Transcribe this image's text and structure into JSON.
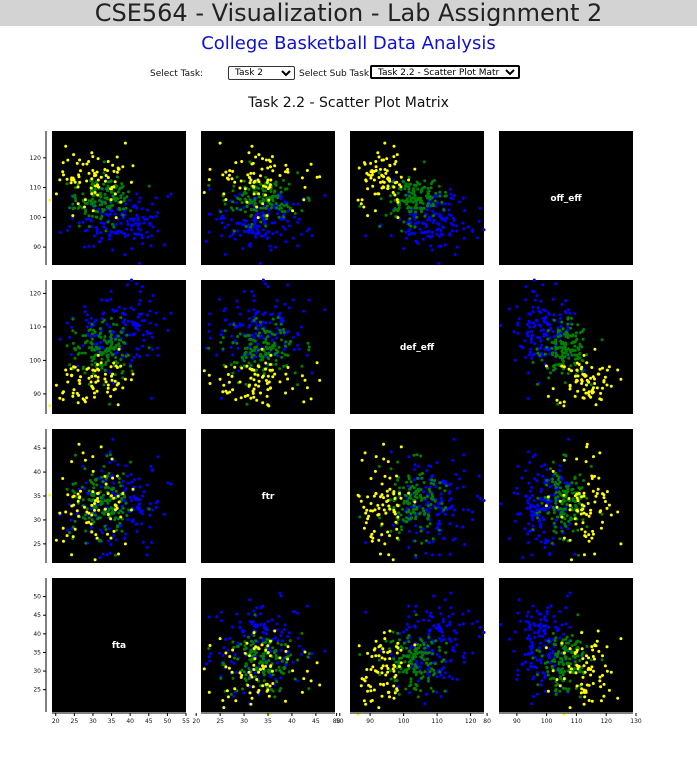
{
  "page": {
    "title": "CSE564 - Visualization - Lab Assignment 2",
    "subtitle": "College Basketball Data Analysis"
  },
  "controls": {
    "task_label": "Select Task:",
    "task_value": "Task 2",
    "subtask_label": "Select Sub Task:",
    "subtask_value": "Task 2.2 - Scatter Plot Matrix"
  },
  "colors": {
    "background": "#000000",
    "clusters": [
      "#0000ff",
      "#008000",
      "#ffff00"
    ]
  },
  "chart_data": {
    "type": "scatter",
    "title": "Task 2.2 - Scatter Plot Matrix",
    "variables": [
      {
        "name": "off_eff",
        "ticks": [
          90,
          100,
          110,
          120
        ],
        "range": [
          84,
          129
        ]
      },
      {
        "name": "def_eff",
        "ticks": [
          90,
          100,
          110,
          120
        ],
        "range": [
          84,
          124
        ]
      },
      {
        "name": "ftr",
        "ticks": [
          25,
          30,
          35,
          40,
          45
        ],
        "range": [
          21,
          49
        ]
      },
      {
        "name": "fta",
        "ticks": [
          20,
          25,
          30,
          35,
          40,
          45,
          50,
          55
        ],
        "range": [
          19,
          55
        ]
      }
    ],
    "x_ticks_bottom": [
      [
        "20",
        "25",
        "30",
        "35",
        "40",
        "45",
        "50",
        "55"
      ],
      [
        "20",
        "25",
        "30",
        "35",
        "40",
        "45",
        "50"
      ],
      [
        "80",
        "90",
        "100",
        "110",
        "120"
      ],
      [
        "80",
        "90",
        "100",
        "110",
        "120",
        "130"
      ]
    ],
    "y_ticks_left": [
      [
        "90",
        "100",
        "110",
        "120"
      ],
      [
        "90",
        "100",
        "110",
        "120"
      ],
      [
        "25",
        "30",
        "35",
        "40",
        "45"
      ],
      [
        "25",
        "30",
        "35",
        "40",
        "45",
        "50"
      ]
    ],
    "clusters": [
      {
        "id": 0,
        "color": "#0000ff",
        "mean": {
          "fta": 37,
          "ftr": 33,
          "def_eff": 109,
          "off_eff": 99
        },
        "sd": {
          "fta": 6,
          "ftr": 5,
          "def_eff": 6,
          "off_eff": 5
        },
        "count": 150
      },
      {
        "id": 1,
        "color": "#008000",
        "mean": {
          "fta": 32,
          "ftr": 34,
          "def_eff": 103,
          "off_eff": 106
        },
        "sd": {
          "fta": 4,
          "ftr": 4,
          "def_eff": 4,
          "off_eff": 4
        },
        "count": 150
      },
      {
        "id": 2,
        "color": "#ffff00",
        "mean": {
          "fta": 30,
          "ftr": 33,
          "def_eff": 94,
          "off_eff": 113
        },
        "sd": {
          "fta": 6,
          "ftr": 6,
          "def_eff": 4,
          "off_eff": 5
        },
        "count": 80
      }
    ],
    "grid": false,
    "legend": "none"
  }
}
